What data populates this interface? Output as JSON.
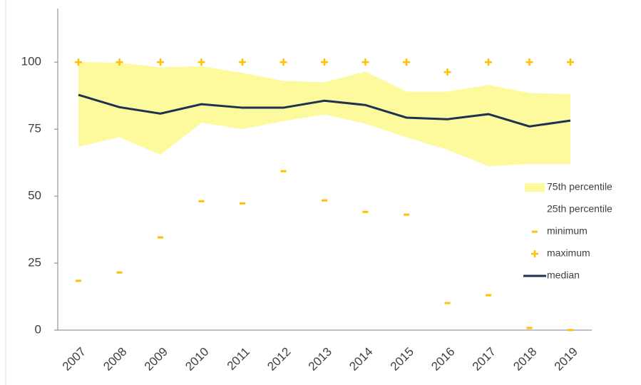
{
  "chart_data": {
    "type": "line",
    "categories": [
      "2007",
      "2008",
      "2009",
      "2010",
      "2011",
      "2012",
      "2013",
      "2014",
      "2015",
      "2016",
      "2017",
      "2018",
      "2019"
    ],
    "ylim": [
      0,
      120
    ],
    "yticks": [
      0,
      25,
      50,
      75,
      100
    ],
    "series": [
      {
        "name": "75th percentile",
        "style": "area",
        "color": "#fdfa9d",
        "values": [
          100,
          99.8,
          98,
          98.5,
          96,
          93,
          92.5,
          96.5,
          89,
          89,
          91.5,
          88.5,
          88
        ]
      },
      {
        "name": "25th percentile",
        "style": "area",
        "color": "#ffffff",
        "values": [
          68.4,
          72,
          65.4,
          77.4,
          75,
          78,
          80.5,
          77,
          72,
          67.3,
          61.2,
          62,
          62
        ]
      },
      {
        "name": "minimum",
        "style": "dash",
        "color": "#ffc000",
        "values": [
          18.4,
          21.5,
          34.6,
          48.1,
          47.3,
          59.3,
          48.4,
          44.1,
          43.1,
          10.1,
          13,
          0.8,
          0
        ]
      },
      {
        "name": "maximum",
        "style": "cross",
        "color": "#ffc000",
        "values": [
          100,
          100,
          100,
          100,
          100,
          100,
          100,
          100,
          100,
          96.3,
          100,
          100,
          100
        ]
      },
      {
        "name": "median",
        "style": "line",
        "color": "#1f3050",
        "values": [
          87.8,
          83.2,
          80.8,
          84.3,
          83,
          83,
          85.6,
          84,
          79.3,
          78.7,
          80.6,
          76,
          78.2
        ]
      }
    ]
  }
}
